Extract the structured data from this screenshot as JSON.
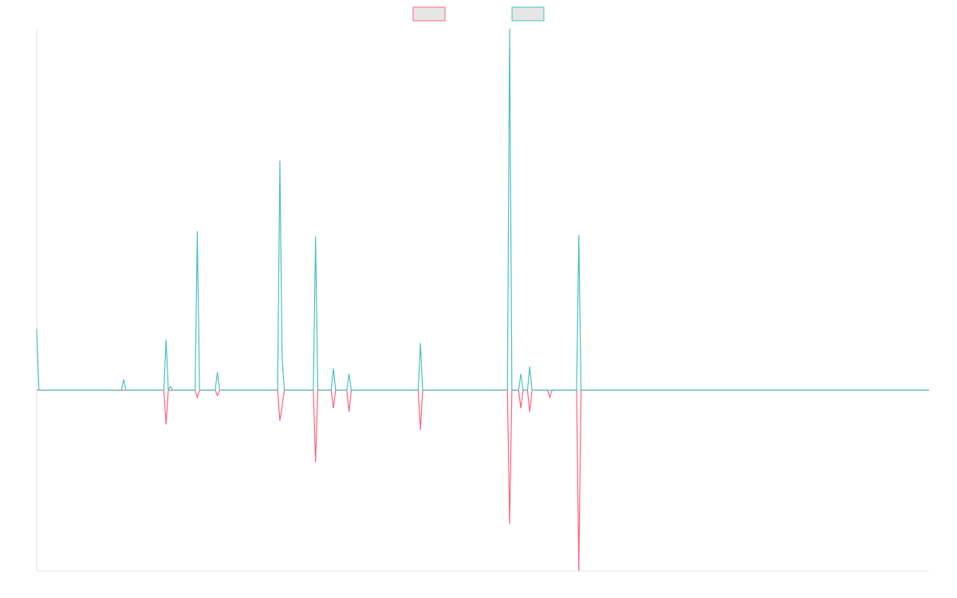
{
  "chart_data": {
    "type": "line",
    "x": [
      0,
      1,
      38,
      39,
      40,
      57,
      58,
      59,
      60,
      61,
      71,
      72,
      73,
      80,
      81,
      82,
      108,
      109,
      110,
      111,
      124,
      125,
      126,
      132,
      133,
      134,
      139,
      140,
      141,
      171,
      172,
      173,
      211,
      212,
      213,
      216,
      217,
      218,
      220,
      221,
      222,
      229,
      230,
      231,
      242,
      243,
      244,
      400
    ],
    "series": [
      {
        "color": "#ff6384",
        "values": [
          0,
          0,
          0,
          0,
          0,
          0,
          -19,
          0,
          0,
          0,
          0,
          -4,
          0,
          0,
          -3,
          0,
          0,
          -17,
          -9,
          0,
          0,
          -40,
          0,
          0,
          -10,
          0,
          0,
          -12,
          0,
          0,
          -22,
          0,
          0,
          -74,
          0,
          0,
          -10,
          0,
          0,
          -12,
          0,
          0,
          -4,
          0,
          0,
          -100,
          0,
          0
        ]
      },
      {
        "color": "#4bc0c0",
        "values": [
          34,
          0,
          0,
          6,
          0,
          0,
          28,
          0,
          2,
          0,
          0,
          88,
          0,
          0,
          10,
          0,
          0,
          127,
          18,
          0,
          0,
          85,
          0,
          0,
          12,
          0,
          0,
          9,
          0,
          0,
          26,
          0,
          0,
          200,
          0,
          0,
          9,
          0,
          0,
          13,
          0,
          0,
          0,
          0,
          0,
          86,
          0,
          0
        ]
      }
    ],
    "xlim": [
      0,
      400
    ],
    "ylim": [
      -100,
      200
    ],
    "legend": "top"
  }
}
